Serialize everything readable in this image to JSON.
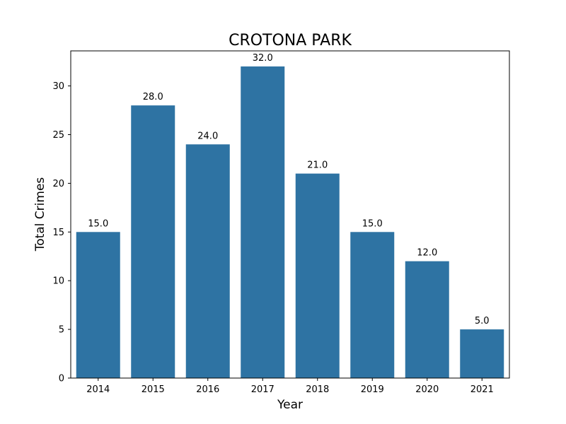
{
  "chart_data": {
    "type": "bar",
    "title": "CROTONA PARK",
    "xlabel": "Year",
    "ylabel": "Total Crimes",
    "categories": [
      "2014",
      "2015",
      "2016",
      "2017",
      "2018",
      "2019",
      "2020",
      "2021"
    ],
    "values": [
      15,
      28,
      24,
      32,
      21,
      15,
      12,
      5
    ],
    "value_labels": [
      "15.0",
      "28.0",
      "24.0",
      "32.0",
      "21.0",
      "15.0",
      "12.0",
      "5.0"
    ],
    "ylim": [
      0,
      33.6
    ],
    "yticks": [
      0,
      5,
      10,
      15,
      20,
      25,
      30
    ],
    "bar_color": "#2e73a3",
    "grid": false,
    "legend": false
  }
}
